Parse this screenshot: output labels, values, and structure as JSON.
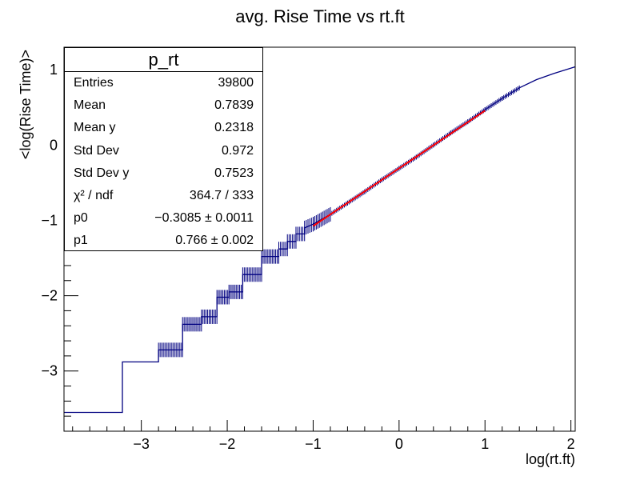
{
  "chart_data": {
    "type": "line",
    "title": "avg. Rise Time vs rt.ft",
    "xlabel": "log(rt.ft)",
    "ylabel": "<log(Rise Time)>",
    "xlim": [
      -3.9,
      2.05
    ],
    "ylim": [
      -3.8,
      1.3
    ],
    "x_ticks": [
      -3,
      -2,
      -1,
      0,
      1,
      2
    ],
    "x_tick_labels": [
      "−3",
      "−2",
      "−1",
      "0",
      "1",
      "2"
    ],
    "y_ticks": [
      -3,
      -2,
      -1,
      0,
      1
    ],
    "y_tick_labels": [
      "−3",
      "−2",
      "−1",
      "0",
      "1"
    ],
    "grid": false,
    "series": [
      {
        "color": "#000080",
        "x": [
          -3.9,
          -3.22,
          -3.22,
          -2.98,
          -2.98,
          -2.8,
          -2.8,
          -2.52,
          -2.52,
          -2.3,
          -2.3,
          -2.12,
          -2.12,
          -1.98,
          -1.98,
          -1.82,
          -1.82,
          -1.6,
          -1.6,
          -1.4,
          -1.4,
          -1.3,
          -1.3,
          -1.2,
          -1.2,
          -1.1,
          -1.1,
          -1.0,
          -0.8,
          -0.6,
          -0.4,
          -0.2,
          0.0,
          0.2,
          0.4,
          0.6,
          0.8,
          1.0,
          1.2,
          1.4,
          1.6,
          1.8,
          2.05
        ],
        "y": [
          -3.55,
          -3.55,
          -2.88,
          -2.88,
          -2.88,
          -2.88,
          -2.72,
          -2.72,
          -2.38,
          -2.38,
          -2.28,
          -2.28,
          -2.02,
          -2.02,
          -1.95,
          -1.95,
          -1.72,
          -1.72,
          -1.48,
          -1.48,
          -1.38,
          -1.38,
          -1.28,
          -1.28,
          -1.18,
          -1.18,
          -1.1,
          -1.05,
          -0.92,
          -0.77,
          -0.62,
          -0.46,
          -0.31,
          -0.16,
          0.0,
          0.16,
          0.31,
          0.47,
          0.62,
          0.76,
          0.87,
          0.95,
          1.04
        ]
      }
    ],
    "fit": {
      "color": "#ff0000",
      "p0": -0.3085,
      "p1": 0.766,
      "x_range": [
        -1.0,
        1.0
      ]
    }
  },
  "stats": {
    "title": "p_rt",
    "rows": [
      {
        "label": "Entries",
        "value": "39800"
      },
      {
        "label": "Mean",
        "value": "0.7839"
      },
      {
        "label": "Mean y",
        "value": "0.2318"
      },
      {
        "label": "Std Dev",
        "value": "0.972"
      },
      {
        "label": "Std Dev y",
        "value": "0.7523"
      },
      {
        "label": "χ² / ndf",
        "value": "364.7 / 333"
      },
      {
        "label": "p0",
        "value": "−0.3085 ± 0.0011"
      },
      {
        "label": "p1",
        "value": "0.766 ± 0.002"
      }
    ]
  }
}
